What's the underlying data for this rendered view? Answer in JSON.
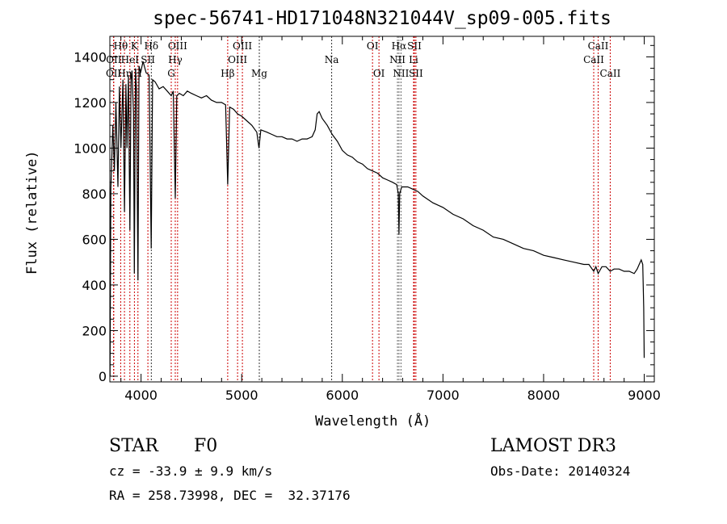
{
  "chart_data": {
    "type": "line",
    "title": "spec-56741-HD171048N321044V_sp09-005.fits",
    "xlabel": "Wavelength (Å)",
    "ylabel": "Flux (relative)",
    "xlim": [
      3690,
      9100
    ],
    "ylim": [
      -25,
      1490
    ],
    "xticks": [
      4000,
      5000,
      6000,
      7000,
      8000,
      9000
    ],
    "yticks": [
      0,
      200,
      400,
      600,
      800,
      1000,
      1200,
      1400
    ],
    "grid": false,
    "series": [
      {
        "name": "spectrum",
        "x": [
          3692,
          3700,
          3720,
          3735,
          3750,
          3770,
          3785,
          3800,
          3820,
          3835,
          3850,
          3860,
          3875,
          3889,
          3900,
          3910,
          3925,
          3933,
          3945,
          3955,
          3969,
          3980,
          3995,
          4020,
          4050,
          4080,
          4101,
          4115,
          4140,
          4180,
          4220,
          4260,
          4300,
          4320,
          4340,
          4355,
          4380,
          4420,
          4460,
          4500,
          4550,
          4600,
          4650,
          4700,
          4750,
          4800,
          4840,
          4861,
          4880,
          4920,
          4960,
          5000,
          5050,
          5100,
          5150,
          5172,
          5190,
          5250,
          5300,
          5350,
          5400,
          5450,
          5500,
          5550,
          5600,
          5650,
          5700,
          5730,
          5750,
          5770,
          5800,
          5850,
          5900,
          5950,
          6000,
          6050,
          6100,
          6150,
          6200,
          6250,
          6300,
          6350,
          6400,
          6450,
          6500,
          6540,
          6556,
          6563,
          6570,
          6590,
          6650,
          6700,
          6750,
          6800,
          6900,
          7000,
          7100,
          7200,
          7300,
          7400,
          7500,
          7600,
          7700,
          7800,
          7900,
          8000,
          8100,
          8200,
          8300,
          8400,
          8450,
          8498,
          8520,
          8542,
          8580,
          8620,
          8662,
          8700,
          8750,
          8800,
          8850,
          8900,
          8930,
          8950,
          8970,
          8985,
          8995,
          9000
        ],
        "y": [
          0,
          820,
          1100,
          900,
          1200,
          830,
          1270,
          1000,
          1300,
          720,
          1280,
          1000,
          1320,
          640,
          1300,
          1340,
          1150,
          450,
          1350,
          1250,
          420,
          1360,
          1330,
          1380,
          1330,
          1320,
          560,
          1300,
          1290,
          1260,
          1270,
          1250,
          1230,
          1250,
          780,
          1230,
          1240,
          1230,
          1250,
          1240,
          1230,
          1220,
          1230,
          1210,
          1200,
          1200,
          1190,
          840,
          1180,
          1170,
          1150,
          1140,
          1120,
          1100,
          1070,
          1000,
          1080,
          1070,
          1060,
          1050,
          1050,
          1040,
          1040,
          1030,
          1040,
          1040,
          1050,
          1080,
          1150,
          1160,
          1130,
          1100,
          1060,
          1030,
          990,
          970,
          960,
          940,
          930,
          910,
          900,
          890,
          870,
          860,
          850,
          840,
          800,
          620,
          800,
          830,
          830,
          820,
          810,
          790,
          760,
          740,
          710,
          690,
          660,
          640,
          610,
          600,
          580,
          560,
          550,
          530,
          520,
          510,
          500,
          490,
          490,
          460,
          480,
          450,
          480,
          480,
          460,
          470,
          470,
          460,
          460,
          450,
          470,
          490,
          510,
          490,
          300,
          80
        ]
      }
    ],
    "line_markers": [
      {
        "label": "OII",
        "wave": 3727,
        "row": 3,
        "color": "#cc0000"
      },
      {
        "label": "OII",
        "wave": 3729,
        "row": 2,
        "color": "#cc0000"
      },
      {
        "label": "Hθ",
        "wave": 3798,
        "row": 1,
        "color": "#cc0000"
      },
      {
        "label": "Hη",
        "wave": 3835,
        "row": 3,
        "color": "#cc0000"
      },
      {
        "label": "HeI",
        "wave": 3889,
        "row": 2,
        "color": "#cc0000"
      },
      {
        "label": "K",
        "wave": 3934,
        "row": 1,
        "color": "#cc0000"
      },
      {
        "label": "H",
        "wave": 3969,
        "row": 3,
        "color": "#cc0000"
      },
      {
        "label": "SII",
        "wave": 4068,
        "row": 2,
        "color": "#cc0000"
      },
      {
        "label": "Hδ",
        "wave": 4102,
        "row": 1,
        "color": "#333333"
      },
      {
        "label": "G",
        "wave": 4300,
        "row": 3,
        "color": "#cc0000"
      },
      {
        "label": "Hγ",
        "wave": 4340,
        "row": 2,
        "color": "#cc0000"
      },
      {
        "label": "OIII",
        "wave": 4363,
        "row": 1,
        "color": "#cc0000"
      },
      {
        "label": "Hβ",
        "wave": 4861,
        "row": 3,
        "color": "#cc0000"
      },
      {
        "label": "OIII",
        "wave": 4959,
        "row": 2,
        "color": "#cc0000"
      },
      {
        "label": "OIII",
        "wave": 5007,
        "row": 1,
        "color": "#cc0000"
      },
      {
        "label": "Mg",
        "wave": 5175,
        "row": 3,
        "color": "#333333"
      },
      {
        "label": "Na",
        "wave": 5894,
        "row": 2,
        "color": "#333333"
      },
      {
        "label": "OI",
        "wave": 6300,
        "row": 1,
        "color": "#cc0000"
      },
      {
        "label": "OI",
        "wave": 6364,
        "row": 3,
        "color": "#cc0000"
      },
      {
        "label": "NII",
        "wave": 6548,
        "row": 2,
        "color": "#666666"
      },
      {
        "label": "Hα",
        "wave": 6563,
        "row": 1,
        "color": "#666666"
      },
      {
        "label": "NII",
        "wave": 6583,
        "row": 3,
        "color": "#666666"
      },
      {
        "label": "Li",
        "wave": 6708,
        "row": 2,
        "color": "#cc0000"
      },
      {
        "label": "SII",
        "wave": 6716,
        "row": 1,
        "color": "#cc0000"
      },
      {
        "label": "SII",
        "wave": 6731,
        "row": 3,
        "color": "#cc0000"
      },
      {
        "label": "CaII",
        "wave": 8498,
        "row": 2,
        "color": "#cc0000"
      },
      {
        "label": "CaII",
        "wave": 8542,
        "row": 1,
        "color": "#cc0000"
      },
      {
        "label": "CaII",
        "wave": 8662,
        "row": 3,
        "color": "#cc0000"
      }
    ]
  },
  "info": {
    "class": "STAR",
    "subclass": "F0",
    "survey": "LAMOST DR3",
    "cz": "cz = -33.9 ± 9.9 km/s",
    "obs_date": "Obs-Date: 20140324",
    "coords": "RA = 258.73998, DEC =  32.37176"
  }
}
